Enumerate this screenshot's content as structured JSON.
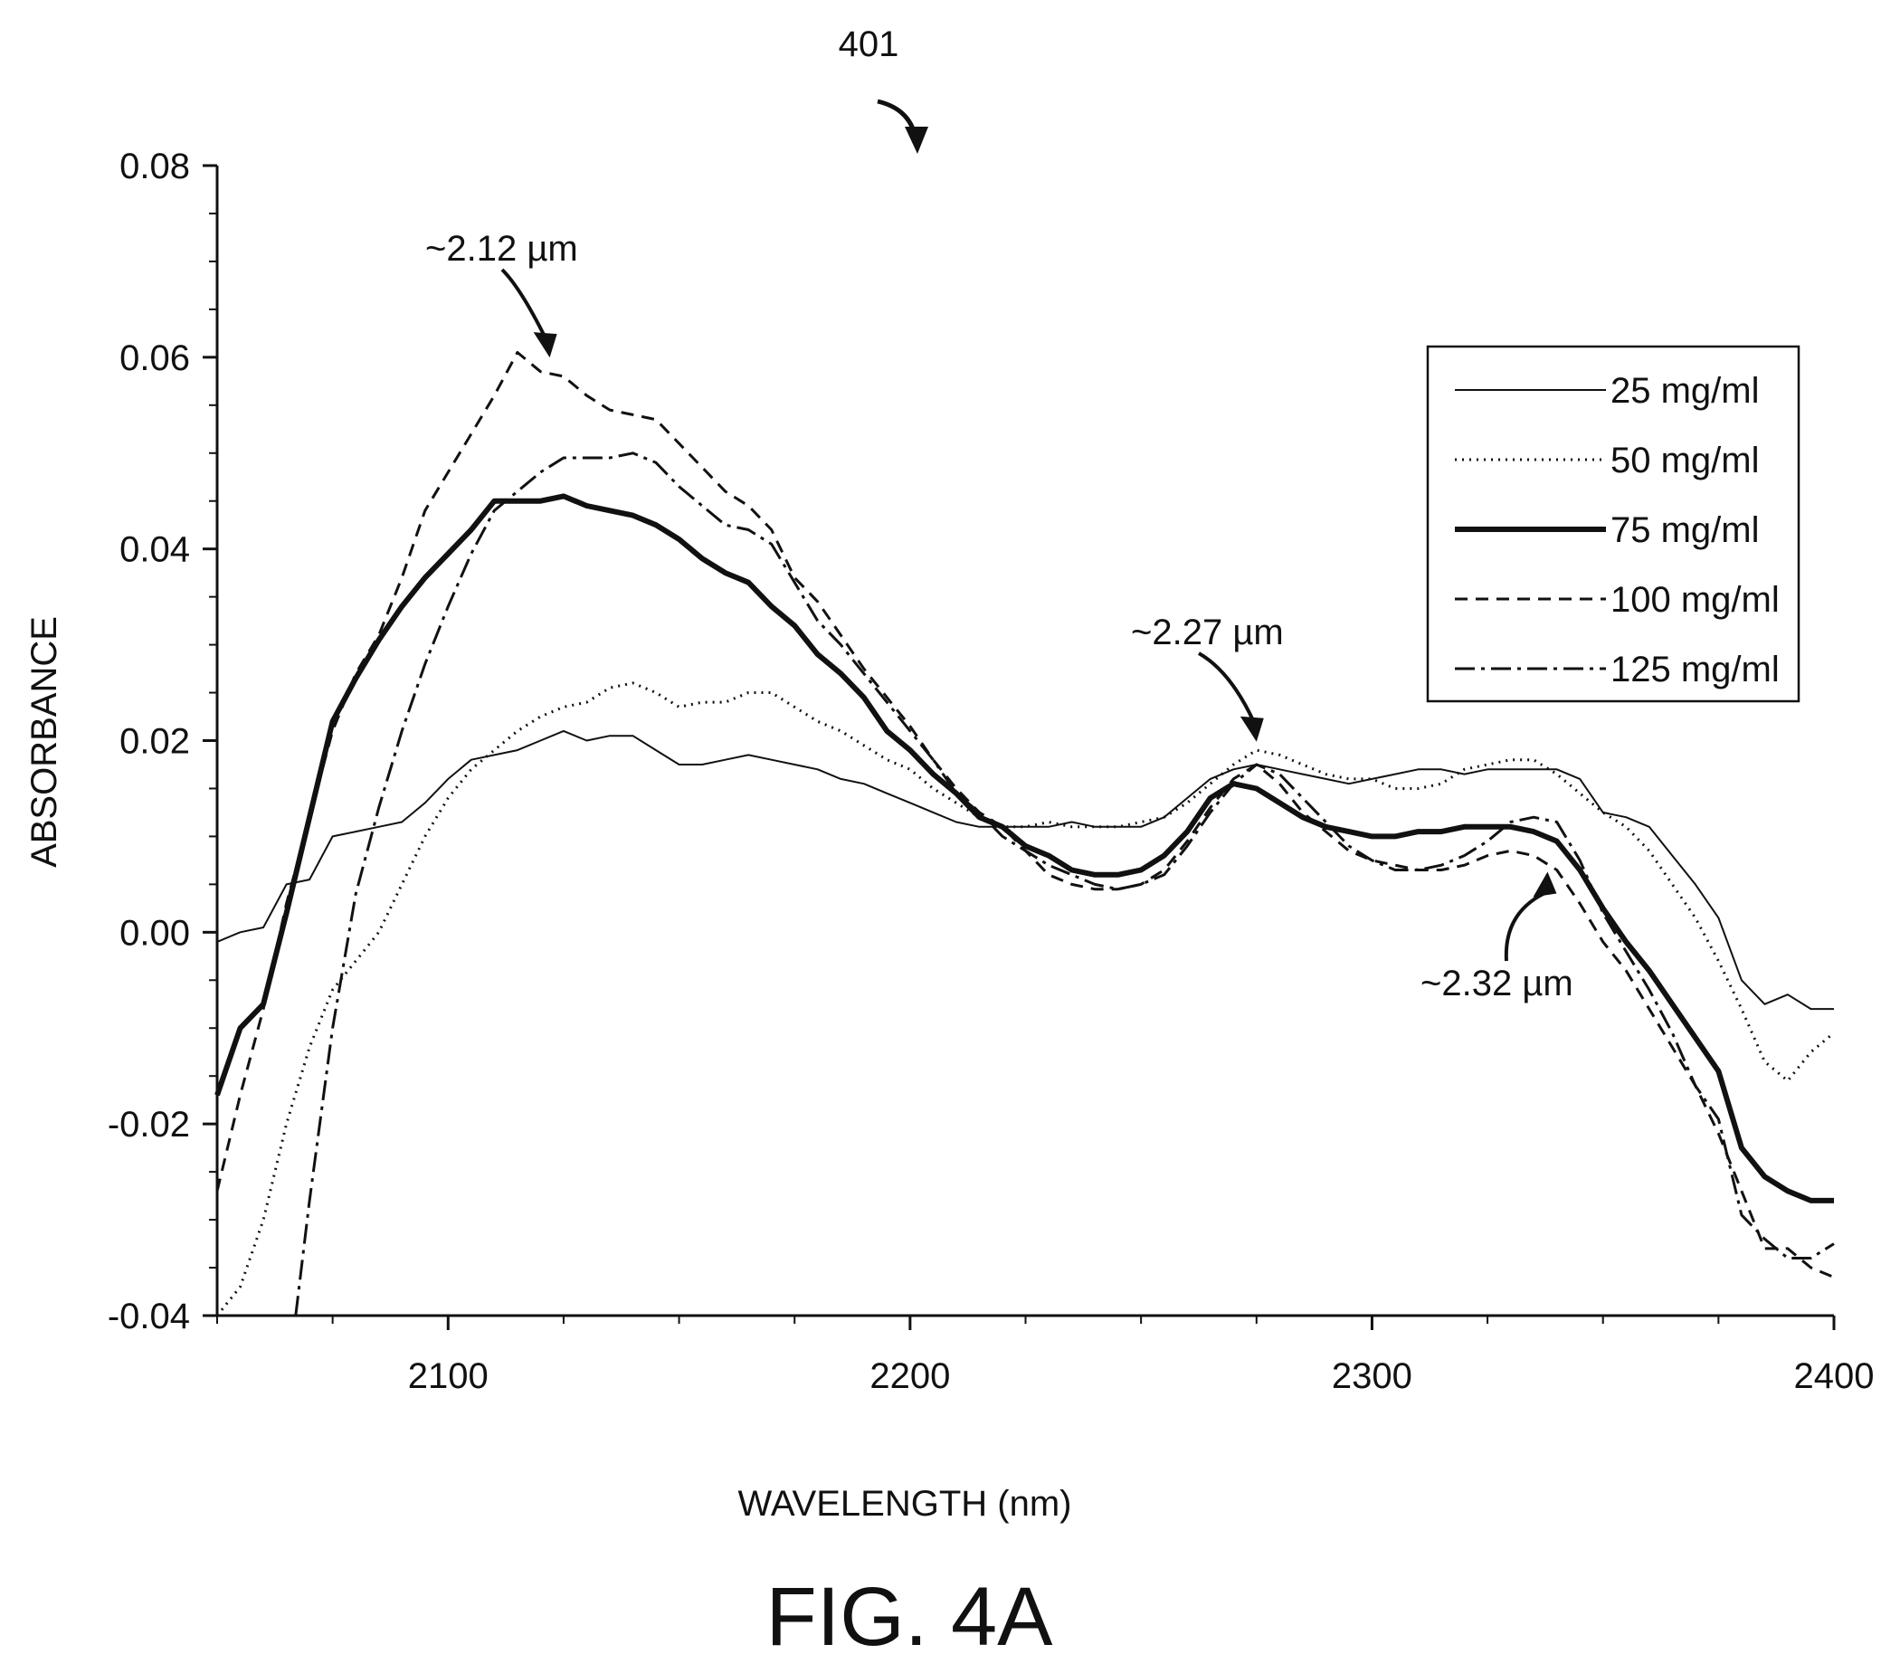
{
  "figure": {
    "ref_number": "401",
    "caption": "FIG. 4A"
  },
  "chart_data": {
    "type": "line",
    "xlabel": "WAVELENGTH (nm)",
    "ylabel": "ABSORBANCE",
    "xlim": [
      2050,
      2400
    ],
    "ylim": [
      -0.04,
      0.08
    ],
    "x_ticks": [
      2100,
      2200,
      2300,
      2400
    ],
    "y_ticks": [
      -0.04,
      -0.02,
      0.0,
      0.02,
      0.04,
      0.06,
      0.08
    ],
    "y_tick_labels": [
      "-0.04",
      "-0.02",
      "0.00",
      "0.02",
      "0.04",
      "0.06",
      "0.08"
    ],
    "grid": false,
    "legend_position": "top-right",
    "annotations": [
      {
        "text": "~2.12 µm",
        "x": 2122,
        "y": 0.0596
      },
      {
        "text": "~2.27 µm",
        "x": 2275,
        "y": 0.0195
      },
      {
        "text": "~2.32 µm",
        "x": 2338,
        "y": 0.0065
      }
    ],
    "series": [
      {
        "name": "25 mg/ml",
        "style": "solid-thin",
        "x": [
          2050,
          2055,
          2060,
          2065,
          2070,
          2075,
          2080,
          2085,
          2090,
          2095,
          2100,
          2105,
          2110,
          2115,
          2120,
          2125,
          2130,
          2135,
          2140,
          2145,
          2150,
          2155,
          2160,
          2165,
          2170,
          2175,
          2180,
          2185,
          2190,
          2195,
          2200,
          2205,
          2210,
          2215,
          2220,
          2225,
          2230,
          2235,
          2240,
          2245,
          2250,
          2255,
          2260,
          2265,
          2270,
          2275,
          2280,
          2285,
          2290,
          2295,
          2300,
          2305,
          2310,
          2315,
          2320,
          2325,
          2330,
          2335,
          2340,
          2345,
          2350,
          2355,
          2360,
          2365,
          2370,
          2375,
          2380,
          2385,
          2390,
          2395,
          2400
        ],
        "y": [
          -0.001,
          0.0,
          0.0005,
          0.005,
          0.0055,
          0.01,
          0.0105,
          0.011,
          0.0115,
          0.0135,
          0.016,
          0.018,
          0.0185,
          0.019,
          0.02,
          0.021,
          0.02,
          0.0205,
          0.0205,
          0.019,
          0.0175,
          0.0175,
          0.018,
          0.0185,
          0.018,
          0.0175,
          0.017,
          0.016,
          0.0155,
          0.0145,
          0.0135,
          0.0125,
          0.0115,
          0.011,
          0.011,
          0.011,
          0.011,
          0.0115,
          0.011,
          0.011,
          0.011,
          0.012,
          0.014,
          0.016,
          0.017,
          0.0175,
          0.017,
          0.0165,
          0.016,
          0.0155,
          0.016,
          0.0165,
          0.017,
          0.017,
          0.0165,
          0.017,
          0.017,
          0.017,
          0.017,
          0.016,
          0.0125,
          0.012,
          0.011,
          0.008,
          0.005,
          0.0015,
          -0.005,
          -0.0075,
          -0.0065,
          -0.008,
          -0.008
        ]
      },
      {
        "name": "50 mg/ml",
        "style": "dotted",
        "x": [
          2050,
          2055,
          2060,
          2065,
          2070,
          2075,
          2080,
          2085,
          2090,
          2095,
          2100,
          2105,
          2110,
          2115,
          2120,
          2125,
          2130,
          2135,
          2140,
          2145,
          2150,
          2155,
          2160,
          2165,
          2170,
          2175,
          2180,
          2185,
          2190,
          2195,
          2200,
          2205,
          2210,
          2215,
          2220,
          2225,
          2230,
          2235,
          2240,
          2245,
          2250,
          2255,
          2260,
          2265,
          2270,
          2275,
          2280,
          2285,
          2290,
          2295,
          2300,
          2305,
          2310,
          2315,
          2320,
          2325,
          2330,
          2335,
          2340,
          2345,
          2350,
          2355,
          2360,
          2365,
          2370,
          2375,
          2380,
          2385,
          2390,
          2395,
          2400
        ],
        "y": [
          -0.04,
          -0.037,
          -0.03,
          -0.02,
          -0.012,
          -0.006,
          -0.003,
          0.0,
          0.005,
          0.01,
          0.014,
          0.017,
          0.019,
          0.021,
          0.0225,
          0.0235,
          0.024,
          0.0255,
          0.026,
          0.025,
          0.0235,
          0.024,
          0.024,
          0.025,
          0.025,
          0.0235,
          0.022,
          0.021,
          0.0195,
          0.018,
          0.017,
          0.015,
          0.0135,
          0.012,
          0.011,
          0.011,
          0.0115,
          0.011,
          0.011,
          0.011,
          0.0115,
          0.012,
          0.0135,
          0.0155,
          0.0175,
          0.019,
          0.0185,
          0.0175,
          0.0165,
          0.016,
          0.016,
          0.015,
          0.015,
          0.0155,
          0.017,
          0.0175,
          0.018,
          0.018,
          0.0165,
          0.0145,
          0.0125,
          0.011,
          0.0085,
          0.005,
          0.0015,
          -0.003,
          -0.008,
          -0.0135,
          -0.0155,
          -0.0125,
          -0.0105
        ]
      },
      {
        "name": "75 mg/ml",
        "style": "solid-thick",
        "x": [
          2050,
          2055,
          2060,
          2065,
          2070,
          2075,
          2080,
          2085,
          2090,
          2095,
          2100,
          2105,
          2110,
          2115,
          2120,
          2125,
          2130,
          2135,
          2140,
          2145,
          2150,
          2155,
          2160,
          2165,
          2170,
          2175,
          2180,
          2185,
          2190,
          2195,
          2200,
          2205,
          2210,
          2215,
          2220,
          2225,
          2230,
          2235,
          2240,
          2245,
          2250,
          2255,
          2260,
          2265,
          2270,
          2275,
          2280,
          2285,
          2290,
          2295,
          2300,
          2305,
          2310,
          2315,
          2320,
          2325,
          2330,
          2335,
          2340,
          2345,
          2350,
          2355,
          2360,
          2365,
          2370,
          2375,
          2380,
          2385,
          2390,
          2395,
          2400
        ],
        "y": [
          -0.017,
          -0.01,
          -0.0075,
          0.002,
          0.012,
          0.022,
          0.0265,
          0.0305,
          0.034,
          0.037,
          0.0395,
          0.042,
          0.045,
          0.045,
          0.045,
          0.0455,
          0.0445,
          0.044,
          0.0435,
          0.0425,
          0.041,
          0.039,
          0.0375,
          0.0365,
          0.034,
          0.032,
          0.029,
          0.027,
          0.0245,
          0.021,
          0.019,
          0.0165,
          0.0145,
          0.012,
          0.011,
          0.009,
          0.008,
          0.0065,
          0.006,
          0.006,
          0.0065,
          0.008,
          0.0105,
          0.014,
          0.0155,
          0.015,
          0.0135,
          0.012,
          0.011,
          0.0105,
          0.01,
          0.01,
          0.0105,
          0.0105,
          0.011,
          0.011,
          0.011,
          0.0105,
          0.0095,
          0.0065,
          0.0025,
          -0.001,
          -0.004,
          -0.0075,
          -0.011,
          -0.0145,
          -0.0225,
          -0.0255,
          -0.027,
          -0.028,
          -0.028
        ]
      },
      {
        "name": "100 mg/ml",
        "style": "dashed",
        "x": [
          2050,
          2055,
          2060,
          2065,
          2070,
          2075,
          2080,
          2085,
          2090,
          2095,
          2100,
          2105,
          2110,
          2115,
          2120,
          2125,
          2130,
          2135,
          2140,
          2145,
          2150,
          2155,
          2160,
          2165,
          2170,
          2175,
          2180,
          2185,
          2190,
          2195,
          2200,
          2205,
          2210,
          2215,
          2220,
          2225,
          2230,
          2235,
          2240,
          2245,
          2250,
          2255,
          2260,
          2265,
          2270,
          2275,
          2280,
          2285,
          2290,
          2295,
          2300,
          2305,
          2310,
          2315,
          2320,
          2325,
          2330,
          2335,
          2340,
          2345,
          2350,
          2355,
          2360,
          2365,
          2370,
          2375,
          2380,
          2385,
          2390,
          2395,
          2400
        ],
        "y": [
          -0.027,
          -0.017,
          -0.008,
          0.003,
          0.012,
          0.021,
          0.027,
          0.031,
          0.037,
          0.044,
          0.048,
          0.052,
          0.056,
          0.0605,
          0.0585,
          0.058,
          0.056,
          0.0545,
          0.054,
          0.0535,
          0.051,
          0.0485,
          0.046,
          0.0445,
          0.042,
          0.037,
          0.0345,
          0.031,
          0.0275,
          0.0245,
          0.0215,
          0.018,
          0.015,
          0.0125,
          0.011,
          0.0085,
          0.006,
          0.005,
          0.0045,
          0.0045,
          0.005,
          0.0065,
          0.0095,
          0.013,
          0.016,
          0.0175,
          0.0155,
          0.0125,
          0.0105,
          0.0085,
          0.0075,
          0.007,
          0.0065,
          0.0065,
          0.007,
          0.008,
          0.0085,
          0.008,
          0.0065,
          0.003,
          -0.001,
          -0.004,
          -0.008,
          -0.012,
          -0.016,
          -0.021,
          -0.027,
          -0.033,
          -0.033,
          -0.035,
          -0.036
        ]
      },
      {
        "name": "125 mg/ml",
        "style": "dash-dot",
        "x": [
          2067,
          2070,
          2075,
          2080,
          2085,
          2090,
          2095,
          2100,
          2105,
          2110,
          2115,
          2120,
          2125,
          2130,
          2135,
          2140,
          2145,
          2150,
          2155,
          2160,
          2165,
          2170,
          2175,
          2180,
          2185,
          2190,
          2195,
          2200,
          2205,
          2210,
          2215,
          2220,
          2225,
          2230,
          2235,
          2240,
          2245,
          2250,
          2255,
          2260,
          2265,
          2270,
          2275,
          2280,
          2285,
          2290,
          2295,
          2300,
          2305,
          2310,
          2315,
          2320,
          2325,
          2330,
          2335,
          2340,
          2345,
          2350,
          2355,
          2360,
          2365,
          2370,
          2375,
          2380,
          2385,
          2390,
          2395,
          2400
        ],
        "y": [
          -0.04,
          -0.028,
          -0.01,
          0.004,
          0.013,
          0.021,
          0.028,
          0.034,
          0.0395,
          0.044,
          0.046,
          0.048,
          0.0495,
          0.0495,
          0.0495,
          0.05,
          0.049,
          0.0465,
          0.0445,
          0.0425,
          0.042,
          0.0405,
          0.0365,
          0.0325,
          0.03,
          0.027,
          0.024,
          0.021,
          0.018,
          0.0145,
          0.0125,
          0.01,
          0.0085,
          0.007,
          0.006,
          0.005,
          0.0045,
          0.005,
          0.006,
          0.009,
          0.0125,
          0.0155,
          0.0175,
          0.0165,
          0.014,
          0.0115,
          0.009,
          0.0075,
          0.0065,
          0.0065,
          0.007,
          0.008,
          0.0095,
          0.0115,
          0.012,
          0.0115,
          0.0075,
          0.002,
          -0.002,
          -0.006,
          -0.0105,
          -0.016,
          -0.0195,
          -0.0295,
          -0.032,
          -0.034,
          -0.034,
          -0.0325
        ]
      }
    ]
  }
}
